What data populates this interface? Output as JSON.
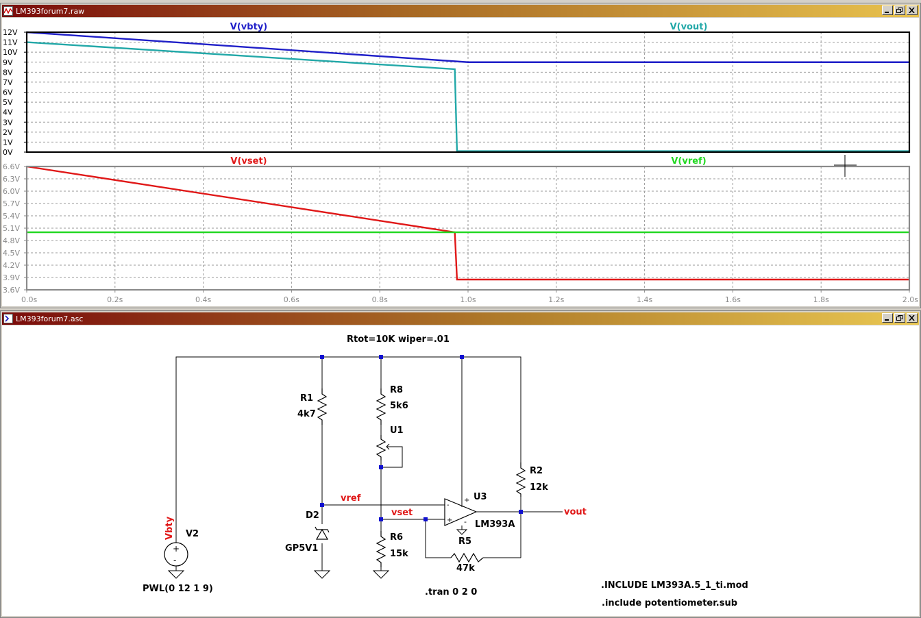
{
  "waveform_window": {
    "title": "LM393forum7.raw",
    "panes": [
      {
        "traces": [
          {
            "label": "V(vbty)",
            "color": "#1f1fc8"
          },
          {
            "label": "V(vout)",
            "color": "#22a8a8"
          }
        ],
        "y_ticks": [
          "12V",
          "11V",
          "10V",
          "9V",
          "8V",
          "7V",
          "6V",
          "5V",
          "4V",
          "3V",
          "2V",
          "1V",
          "0V"
        ]
      },
      {
        "traces": [
          {
            "label": "V(vset)",
            "color": "#e01818"
          },
          {
            "label": "V(vref)",
            "color": "#22d822"
          }
        ],
        "y_ticks": [
          "6.6V",
          "6.3V",
          "6.0V",
          "5.7V",
          "5.4V",
          "5.1V",
          "4.8V",
          "4.5V",
          "4.2V",
          "3.9V",
          "3.6V"
        ]
      }
    ],
    "x_ticks": [
      "0.0s",
      "0.2s",
      "0.4s",
      "0.6s",
      "0.8s",
      "1.0s",
      "1.2s",
      "1.4s",
      "1.6s",
      "1.8s",
      "2.0s"
    ]
  },
  "chart_data": [
    {
      "type": "line",
      "xlim": [
        0,
        2
      ],
      "ylim": [
        0,
        12
      ],
      "grid": true,
      "series": [
        {
          "name": "V(vbty)",
          "x": [
            0,
            1,
            2
          ],
          "y": [
            12,
            9,
            9
          ]
        },
        {
          "name": "V(vout)",
          "x": [
            0,
            0.97,
            0.975,
            2
          ],
          "y": [
            11,
            8.3,
            0.1,
            0.1
          ]
        }
      ]
    },
    {
      "type": "line",
      "xlim": [
        0,
        2
      ],
      "ylim": [
        3.6,
        6.6
      ],
      "grid": true,
      "series": [
        {
          "name": "V(vset)",
          "x": [
            0,
            0.97,
            0.975,
            2
          ],
          "y": [
            6.6,
            5.0,
            3.85,
            3.85
          ]
        },
        {
          "name": "V(vref)",
          "x": [
            0,
            2
          ],
          "y": [
            5.0,
            5.0
          ]
        }
      ]
    }
  ],
  "schematic_window": {
    "title": "LM393forum7.asc",
    "directive_top": "Rtot=10K wiper=.01",
    "components": {
      "r1": {
        "name": "R1",
        "value": "4k7"
      },
      "r8": {
        "name": "R8",
        "value": "5k6"
      },
      "u1": {
        "name": "U1"
      },
      "r2": {
        "name": "R2",
        "value": "12k"
      },
      "u3": {
        "name": "U3",
        "value": "LM393A"
      },
      "d2": {
        "name": "D2",
        "value": "GP5V1"
      },
      "r6": {
        "name": "R6",
        "value": "15k"
      },
      "r5": {
        "name": "R5",
        "value": "47k"
      },
      "v2": {
        "name": "V2",
        "value": "PWL(0 12 1 9)"
      }
    },
    "nets": {
      "vbty": "Vbty",
      "vref": "vref",
      "vset": "vset",
      "vout": "vout"
    },
    "op_signs": {
      "plus": "+",
      "minus": "-"
    },
    "directives": {
      "tran": ".tran 0 2 0",
      "include1": ".INCLUDE LM393A.5_1_ti.mod",
      "include2": ".include potentiometer.sub"
    }
  }
}
